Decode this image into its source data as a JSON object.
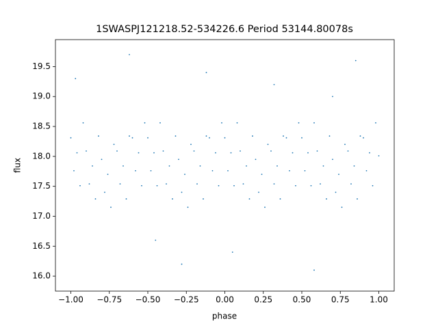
{
  "chart_data": {
    "type": "scatter",
    "title": "1SWASPJ121218.52-534226.6 Period 53144.80078s",
    "x_label": "phase",
    "y_label": "flux",
    "color": "#1f77b4",
    "xlim": [
      -1.1,
      1.1
    ],
    "ylim": [
      15.75,
      19.95
    ],
    "xticks": [
      {
        "value": -1,
        "label": "−1.00"
      },
      {
        "value": -0.75,
        "label": "−0.75"
      },
      {
        "value": -0.5,
        "label": "−0.50"
      },
      {
        "value": -0.25,
        "label": "−0.25"
      },
      {
        "value": 0,
        "label": "0.00"
      },
      {
        "value": 0.25,
        "label": "0.25"
      },
      {
        "value": 0.5,
        "label": "0.50"
      },
      {
        "value": 0.75,
        "label": "0.75"
      },
      {
        "value": 1,
        "label": "1.00"
      }
    ],
    "yticks": [
      {
        "value": 16,
        "label": "16.0"
      },
      16.5,
      {
        "value": 17,
        "label": "17.0"
      },
      17.5,
      {
        "value": 18,
        "label": "18.0"
      },
      18.5,
      {
        "value": 19,
        "label": "19.0"
      },
      19.5
    ],
    "x": [
      -1,
      -0.98,
      -0.96,
      -0.94,
      -0.92,
      -0.9,
      -0.88,
      -0.86,
      -0.84,
      -0.82,
      -0.8,
      -0.78,
      -0.76,
      -0.74,
      -0.72,
      -0.7,
      -0.68,
      -0.66,
      -0.64,
      -0.62,
      -0.6,
      -0.58,
      -0.56,
      -0.54,
      -0.52,
      -0.5,
      -0.48,
      -0.46,
      -0.44,
      -0.42,
      -0.4,
      -0.38,
      -0.36,
      -0.34,
      -0.32,
      -0.3,
      -0.28,
      -0.26,
      -0.24,
      -0.22,
      -0.2,
      -0.18,
      -0.16,
      -0.14,
      -0.12,
      -0.1,
      -0.08,
      -0.06,
      -0.04,
      -0.02,
      0,
      0.02,
      0.04,
      0.06,
      0.08,
      0.1,
      0.12,
      0.14,
      0.16,
      0.18,
      0.2,
      0.22,
      0.24,
      0.26,
      0.28,
      0.3,
      0.32,
      0.34,
      0.36,
      0.38,
      0.4,
      0.42,
      0.44,
      0.46,
      0.48,
      0.5,
      0.52,
      0.54,
      0.56,
      0.58,
      0.6,
      0.62,
      0.64,
      0.66,
      0.68,
      0.7,
      0.72,
      0.74,
      0.76,
      0.78,
      0.8,
      0.82,
      0.84,
      0.86,
      0.88,
      0.9,
      0.92,
      0.94,
      0.96,
      0.98,
      1,
      -0.97,
      -0.62,
      -0.28,
      -0.12,
      0.05,
      0.32,
      0.58,
      0.85,
      -0.45,
      0.7
    ],
    "y": [
      18.31,
      17.76,
      18.06,
      17.51,
      18.56,
      18.09,
      17.54,
      17.84,
      17.29,
      18.34,
      17.95,
      17.4,
      17.7,
      17.15,
      18.2,
      18.09,
      17.54,
      17.84,
      17.29,
      18.34,
      18.31,
      17.76,
      18.06,
      17.51,
      18.56,
      18.31,
      17.76,
      18.06,
      17.51,
      18.56,
      18.09,
      17.54,
      17.84,
      17.29,
      18.34,
      17.95,
      17.4,
      17.7,
      17.15,
      18.2,
      18.09,
      17.54,
      17.84,
      17.29,
      18.34,
      18.31,
      17.76,
      18.06,
      17.51,
      18.56,
      18.31,
      17.76,
      18.06,
      17.51,
      18.56,
      18.09,
      17.54,
      17.84,
      17.29,
      18.34,
      17.95,
      17.4,
      17.7,
      17.15,
      18.2,
      18.09,
      17.54,
      17.84,
      17.29,
      18.34,
      18.31,
      17.76,
      18.06,
      17.51,
      18.56,
      18.31,
      17.76,
      18.06,
      17.51,
      18.56,
      18.09,
      17.54,
      17.84,
      17.29,
      18.34,
      17.95,
      17.4,
      17.7,
      17.15,
      18.2,
      18.09,
      17.54,
      17.84,
      17.29,
      18.34,
      18.31,
      17.76,
      18.06,
      17.51,
      18.56,
      18.01,
      19.3,
      19.7,
      16.2,
      19.4,
      16.4,
      19.2,
      16.1,
      19.6,
      16.6,
      19.0
    ]
  }
}
